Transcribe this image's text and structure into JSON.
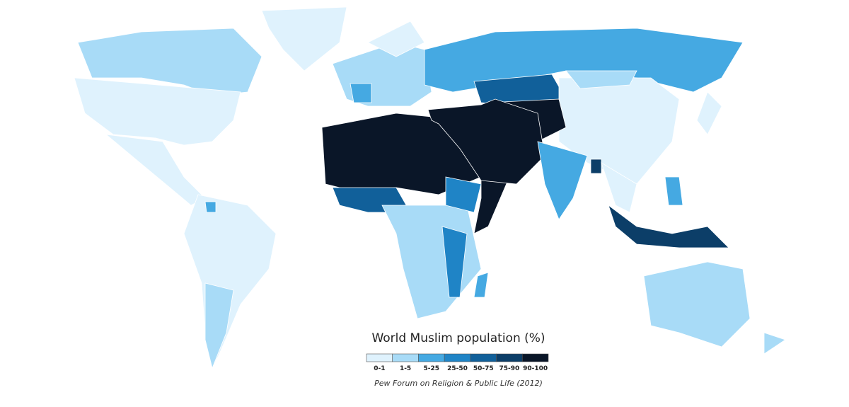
{
  "title": "World Muslim population (%)",
  "legend": {
    "bins": [
      {
        "label": "0-1",
        "color": "#dff2fd"
      },
      {
        "label": "1-5",
        "color": "#a8dbf7"
      },
      {
        "label": "5-25",
        "color": "#45a9e2"
      },
      {
        "label": "25-50",
        "color": "#1f84c6"
      },
      {
        "label": "50-75",
        "color": "#11609a"
      },
      {
        "label": "75-90",
        "color": "#0c3e68"
      },
      {
        "label": "90-100",
        "color": "#0a1628"
      }
    ]
  },
  "source": "Pew Forum on Religion & Public Life (2012)"
}
